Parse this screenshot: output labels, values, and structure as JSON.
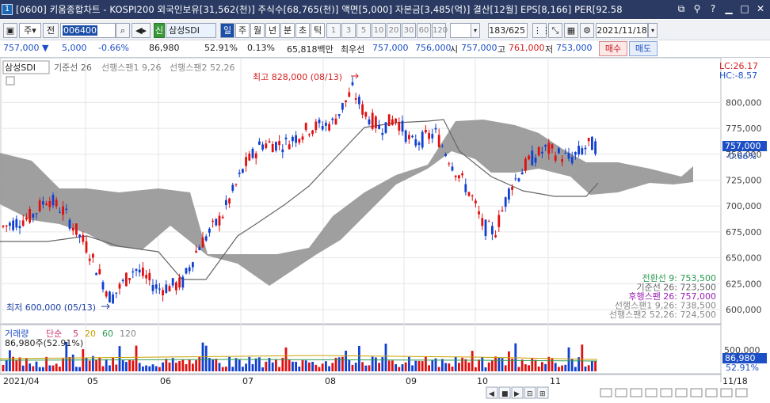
{
  "window": {
    "num": "1",
    "title": "[0600] 키움종합차트 - KOSPI200 외국인보유[31,562(천)] 주식수[68,765(천)] 액면[5,000] 자본금[3,485(억)] 결산[12월] EPS[8,166] PER[92.58"
  },
  "toolbar": {
    "period": "주",
    "prev": "전",
    "code": "006400",
    "sin": "신",
    "stock_name": "삼성SDI",
    "intervals": [
      "일",
      "주",
      "월",
      "년",
      "분",
      "초",
      "틱"
    ],
    "minutes": [
      "1",
      "3",
      "5",
      "10",
      "20",
      "30",
      "60",
      "120"
    ],
    "count": "183",
    "total": "/625",
    "date": "2021/11/18",
    "buy": "매수",
    "sell": "매도"
  },
  "info": {
    "price": "757,000",
    "arrow": "▼",
    "change": "5,000",
    "change_pct": "-0.66%",
    "volume": "86,980",
    "vol_ratio": "52.91%",
    "turnover": "0.13%",
    "amount": "65,818백만",
    "best_label": "최우선",
    "best_ask": "757,000",
    "best_bid": "756,000",
    "open_label": "시",
    "open": "757,000",
    "high_label": "고",
    "high": "761,000",
    "low_label": "저",
    "low": "753,000"
  },
  "price_panel": {
    "stock_label": "삼성SDI",
    "leg_kijun": "기준선 26",
    "leg_spanA": "선행스팬1 9,26",
    "leg_spanB": "선행스팬2 52,26",
    "high_note": "최고 828,000 (08/13)",
    "low_note": "최저 600,000 (05/13)",
    "lc": "LC:26.17",
    "hc": "HC:-8.57",
    "cur_price": "757,000",
    "cur_pct": "-0.66%",
    "y_ticks": [
      "800,000",
      "775,000",
      "750,000",
      "725,000",
      "700,000",
      "675,000",
      "650,000",
      "625,000",
      "600,000"
    ],
    "legend": [
      {
        "text": "전환선 9: 753,500",
        "color": "#2a9a50"
      },
      {
        "text": "기준선 26: 723,500",
        "color": "#666666"
      },
      {
        "text": "후행스팬 26: 757,000",
        "color": "#9b1fb4"
      },
      {
        "text": "선행스팬1 9,26: 738,500",
        "color": "#888888"
      },
      {
        "text": "선행스팬2 52,26: 724,500",
        "color": "#888888"
      }
    ]
  },
  "volume_panel": {
    "label": "거래량",
    "ma_label": "단순",
    "ma": [
      "5",
      "20",
      "60",
      "120"
    ],
    "ma_colors": [
      "#d0306e",
      "#c8a000",
      "#2a9a50",
      "#888888"
    ],
    "cur_text": "86,980주(52.91%)",
    "axis_ticks": [
      "500,000"
    ],
    "cur_vol": "86,980",
    "cur_pct": "52.91%"
  },
  "x_axis": {
    "labels": [
      "2021/04",
      "05",
      "06",
      "07",
      "08",
      "09",
      "10",
      "11"
    ],
    "right_date": "11/18"
  },
  "chart_data": [
    {
      "type": "candlestick",
      "y_ticks": [
        600000,
        625000,
        650000,
        675000,
        700000,
        725000,
        750000,
        775000,
        800000
      ],
      "high": 828000,
      "high_date": "08/13",
      "low": 600000,
      "low_date": "05/13",
      "last_close": 757000,
      "series": [
        {
          "name": "전환선 9",
          "value": 753500
        },
        {
          "name": "기준선 26",
          "value": 723500
        },
        {
          "name": "후행스팬 26",
          "value": 757000
        },
        {
          "name": "선행스팬1 9,26",
          "value": 738500
        },
        {
          "name": "선행스팬2 52,26",
          "value": 724500
        }
      ]
    },
    {
      "type": "bar",
      "name": "거래량",
      "last_value": 86980,
      "last_pct": "52.91%",
      "y_ticks": [
        500000
      ]
    }
  ]
}
